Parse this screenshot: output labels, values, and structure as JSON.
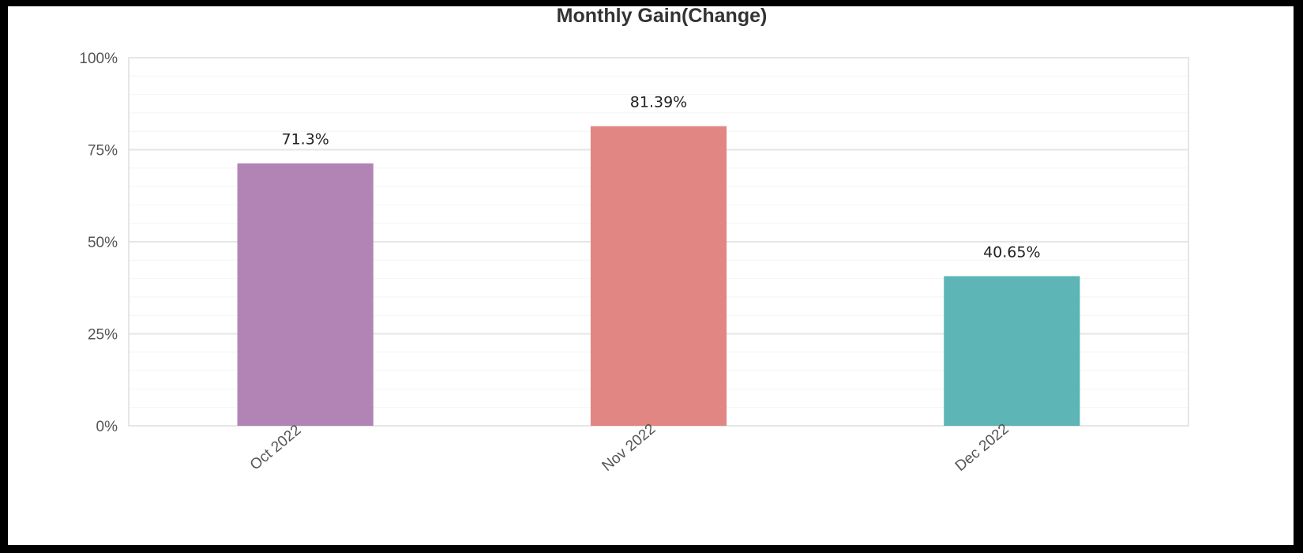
{
  "chart_data": {
    "type": "bar",
    "title": "Monthly Gain(Change)",
    "xlabel": "",
    "ylabel": "",
    "categories": [
      "Oct 2022",
      "Nov 2022",
      "Dec 2022"
    ],
    "values": [
      71.3,
      81.39,
      40.65
    ],
    "data_labels": [
      "71.3%",
      "81.39%",
      "40.65%"
    ],
    "colors": [
      "#b284b5",
      "#e28683",
      "#5db5b5"
    ],
    "ylim": [
      0,
      100
    ],
    "yticks": [
      0,
      25,
      50,
      75,
      100
    ],
    "ytick_labels": [
      "0%",
      "25%",
      "50%",
      "75%",
      "100%"
    ],
    "grid": true,
    "legend": "none"
  }
}
